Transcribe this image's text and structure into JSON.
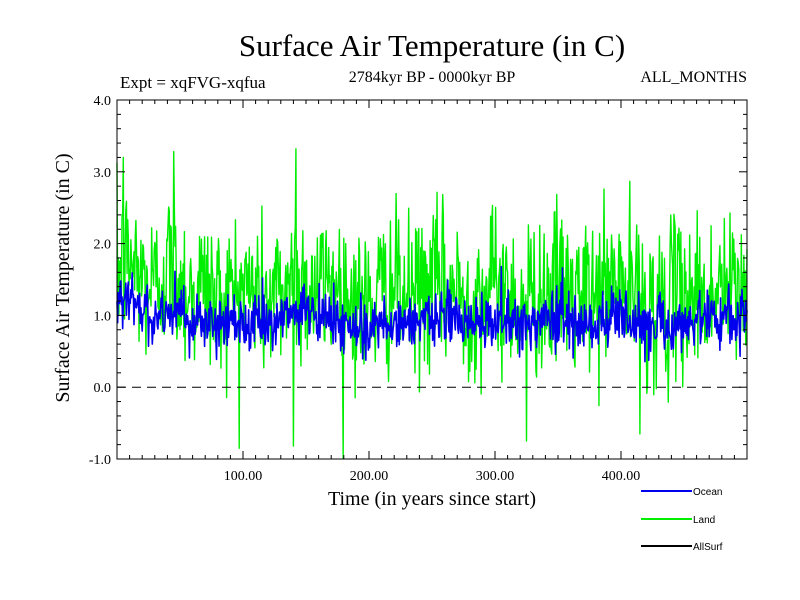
{
  "chart_data": {
    "type": "line",
    "title": "Surface Air Temperature (in C)",
    "subtitle": "2784kyr BP - 0000kyr BP",
    "expt_label": "Expt = xqFVG-xqfua",
    "months_label": "ALL_MONTHS",
    "xlabel": "Time (in years since start)",
    "ylabel": "Surface Air Temperature (in C)",
    "xlim": [
      0,
      500
    ],
    "ylim": [
      -1.0,
      4.0
    ],
    "x_ticks": [
      {
        "value": 100,
        "label": "100.00"
      },
      {
        "value": 200,
        "label": "200.00"
      },
      {
        "value": 300,
        "label": "300.00"
      },
      {
        "value": 400,
        "label": "400.00"
      }
    ],
    "y_ticks": [
      {
        "value": -1.0,
        "label": "-1.0"
      },
      {
        "value": 0.0,
        "label": "0.0"
      },
      {
        "value": 1.0,
        "label": "1.0"
      },
      {
        "value": 2.0,
        "label": "2.0"
      },
      {
        "value": 3.0,
        "label": "3.0"
      },
      {
        "value": 4.0,
        "label": "4.0"
      }
    ],
    "reference_line": {
      "value": 0.0,
      "style": "dashed"
    },
    "legend_placement": "bottom-right, outside plot",
    "series": [
      {
        "name": "Land",
        "color": "#00ee00",
        "mean": 1.35,
        "x": [
          0,
          10,
          20,
          30,
          40,
          50,
          60,
          70,
          80,
          90,
          100,
          110,
          120,
          130,
          140,
          150,
          160,
          170,
          180,
          190,
          200,
          210,
          220,
          230,
          240,
          250,
          260,
          270,
          280,
          290,
          300,
          310,
          320,
          330,
          340,
          350,
          360,
          370,
          380,
          390,
          400,
          410,
          420,
          430,
          440,
          450,
          460,
          470,
          480,
          490,
          500
        ],
        "values": [
          1.6,
          1.8,
          1.5,
          1.4,
          1.7,
          1.5,
          1.3,
          1.4,
          1.2,
          1.3,
          1.4,
          1.3,
          1.2,
          1.3,
          1.6,
          1.4,
          1.3,
          1.5,
          1.3,
          1.2,
          1.1,
          1.3,
          1.4,
          1.2,
          1.3,
          1.4,
          1.4,
          1.3,
          1.2,
          1.3,
          1.4,
          1.3,
          1.2,
          1.3,
          1.3,
          1.4,
          1.3,
          1.2,
          1.3,
          1.4,
          1.4,
          1.3,
          1.2,
          1.1,
          1.2,
          1.3,
          1.3,
          1.2,
          1.4,
          1.3,
          1.4
        ],
        "peaks": [
          {
            "x": 5,
            "value": 3.2
          },
          {
            "x": 45,
            "value": 3.28
          },
          {
            "x": 142,
            "value": 3.32
          },
          {
            "x": 140,
            "value": -0.82
          },
          {
            "x": 325,
            "value": -0.75
          },
          {
            "x": 415,
            "value": -0.65
          }
        ]
      },
      {
        "name": "Ocean",
        "color": "#0000ee",
        "mean": 0.95,
        "x": [
          0,
          10,
          20,
          30,
          40,
          50,
          60,
          70,
          80,
          90,
          100,
          110,
          120,
          130,
          140,
          150,
          160,
          170,
          180,
          190,
          200,
          210,
          220,
          230,
          240,
          250,
          260,
          270,
          280,
          290,
          300,
          310,
          320,
          330,
          340,
          350,
          360,
          370,
          380,
          390,
          400,
          410,
          420,
          430,
          440,
          450,
          460,
          470,
          480,
          490,
          500
        ],
        "values": [
          1.35,
          1.2,
          1.05,
          1.0,
          1.1,
          1.05,
          0.95,
          0.9,
          0.85,
          0.9,
          0.95,
          0.9,
          0.85,
          0.9,
          1.05,
          1.0,
          0.95,
          1.0,
          0.9,
          0.85,
          0.8,
          0.9,
          0.95,
          0.85,
          0.9,
          0.95,
          1.0,
          0.95,
          0.85,
          0.9,
          0.95,
          0.9,
          0.85,
          0.9,
          0.95,
          1.0,
          0.95,
          0.9,
          0.9,
          0.95,
          1.0,
          0.95,
          0.9,
          0.85,
          0.85,
          0.9,
          0.95,
          0.9,
          1.0,
          0.95,
          1.0
        ]
      },
      {
        "name": "AllSurf",
        "color": "#000000",
        "values": []
      }
    ]
  }
}
